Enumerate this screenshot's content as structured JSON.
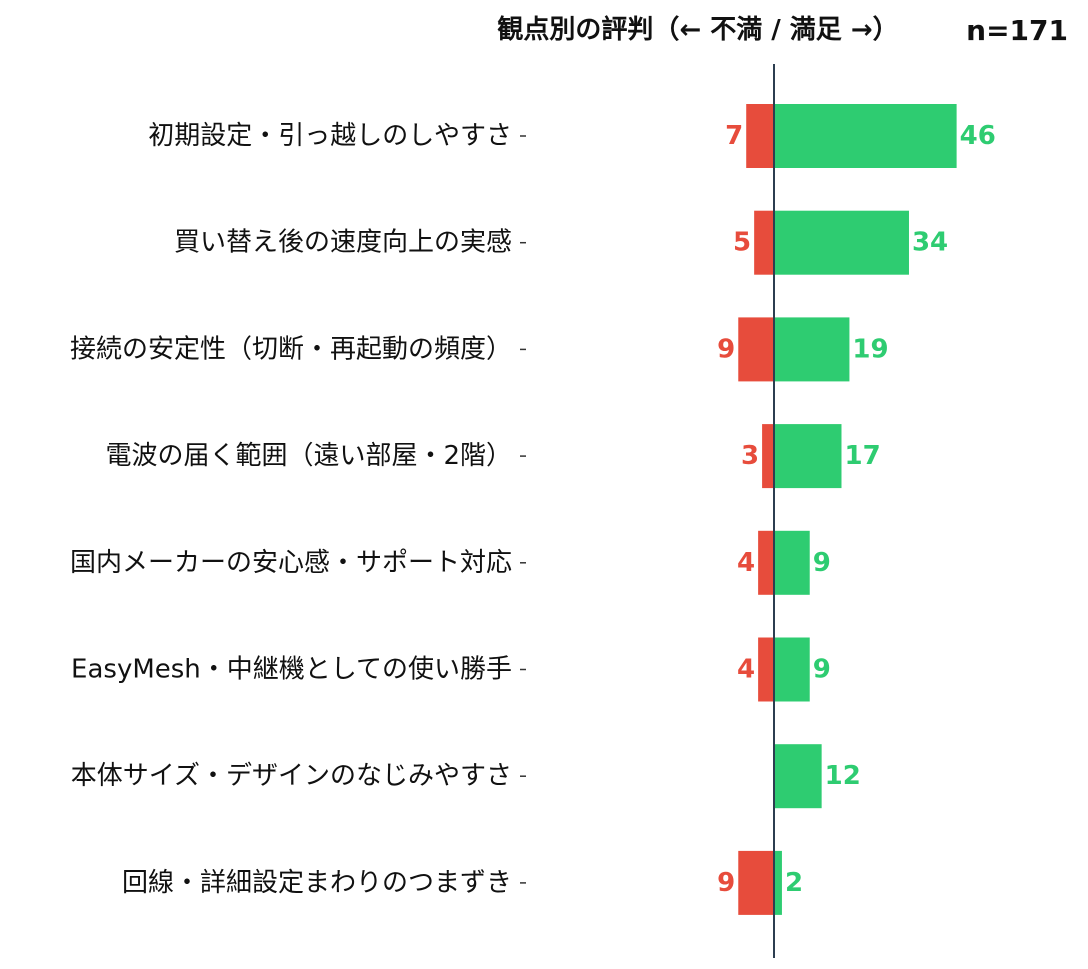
{
  "chart_data": {
    "type": "bar",
    "orientation": "horizontal-diverging",
    "title": "観点別の評判（← 不満 / 満足 →）",
    "n_label": "n=171",
    "categories": [
      "初期設定・引っ越しのしやすさ",
      "買い替え後の速度向上の実感",
      "接続の安定性（切断・再起動の頻度）",
      "電波の届く範囲（遠い部屋・2階）",
      "国内メーカーの安心感・サポート対応",
      "EasyMesh・中継機としての使い勝手",
      "本体サイズ・デザインのなじみやすさ",
      "回線・詳細設定まわりのつまずき"
    ],
    "series": [
      {
        "name": "",
        "values": [
          7,
          5,
          9,
          3,
          4,
          4,
          0,
          9
        ],
        "color": "#e74c3c"
      },
      {
        "name": "",
        "values": [
          46,
          34,
          19,
          17,
          9,
          9,
          12,
          2
        ],
        "color": "#2ecc71"
      }
    ],
    "axis_color": "#2c3e50",
    "grid": false,
    "legend": "none"
  }
}
